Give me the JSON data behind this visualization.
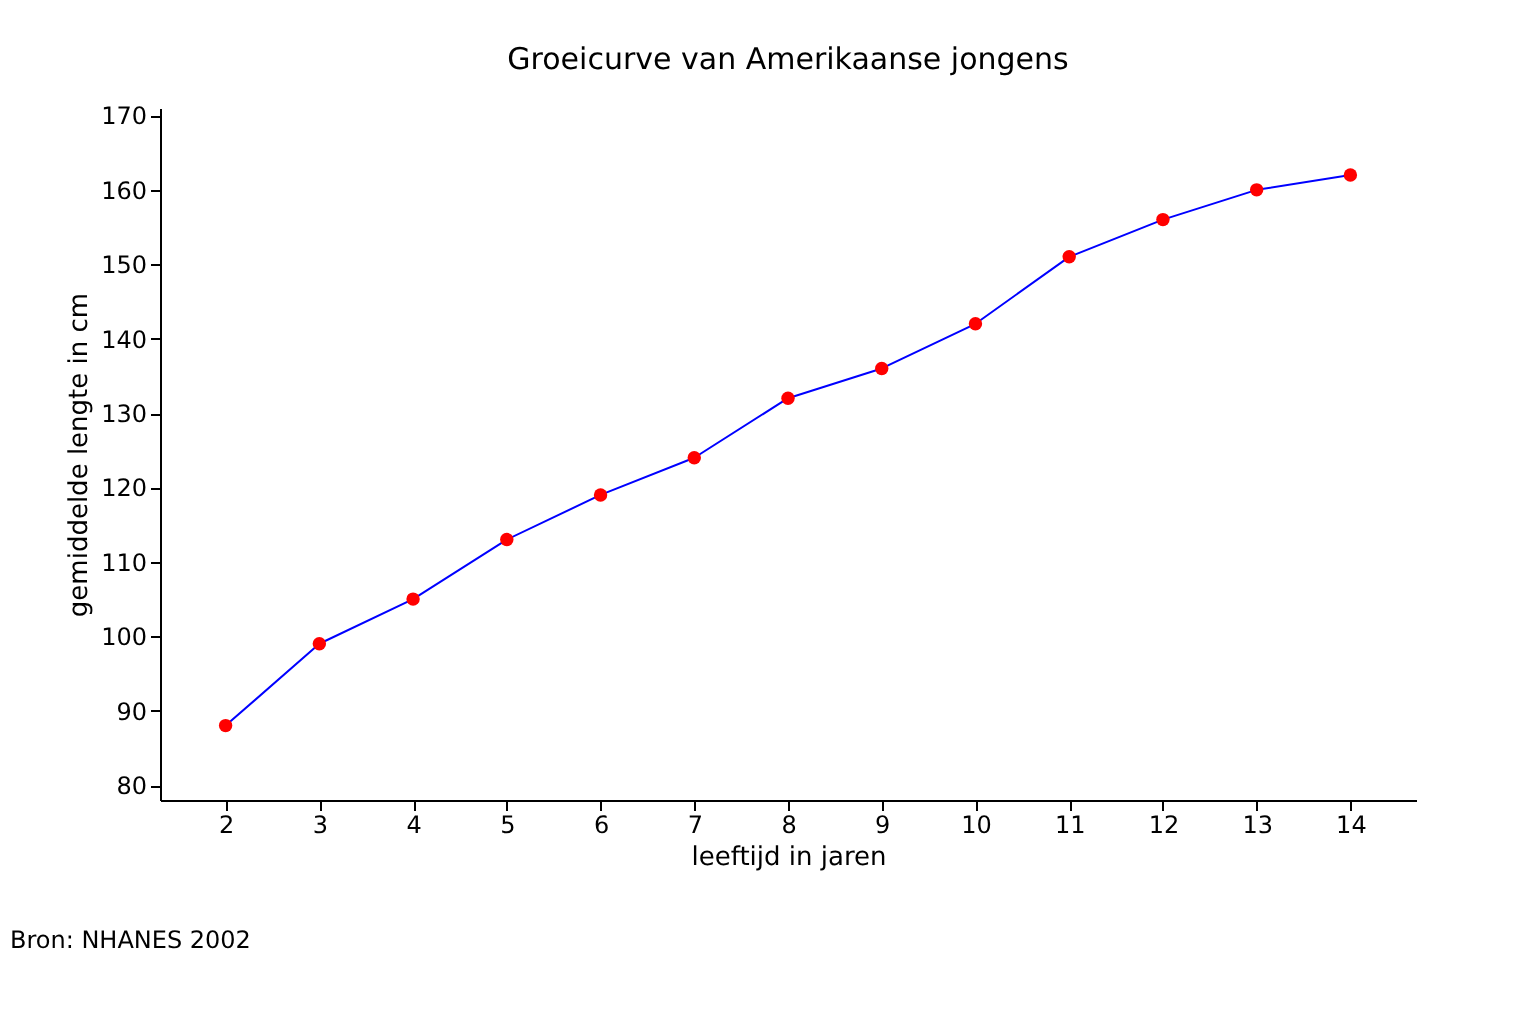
{
  "chart_data": {
    "type": "line",
    "title": "Groeicurve van Amerikaanse jongens",
    "xlabel": "leeftijd in jaren",
    "ylabel": "gemiddelde lengte in cm",
    "annotations": [
      "Bron: NHANES 2002"
    ],
    "x": [
      2,
      3,
      4,
      5,
      6,
      7,
      8,
      9,
      10,
      11,
      12,
      13,
      14
    ],
    "series": [
      {
        "color": "#0000ff",
        "values": [
          88,
          99,
          105,
          113,
          119,
          124,
          132,
          136,
          142,
          151,
          156,
          160,
          162
        ]
      }
    ],
    "xlim": [
      1.3,
      14.7
    ],
    "xticks": [
      2,
      3,
      4,
      5,
      6,
      7,
      8,
      9,
      10,
      11,
      12,
      13,
      14
    ],
    "ylim": [
      78,
      171
    ],
    "yticks": [
      80,
      90,
      100,
      110,
      120,
      130,
      140,
      150,
      160,
      170
    ],
    "grid": false,
    "marker": "circle",
    "line_style": "solid"
  }
}
